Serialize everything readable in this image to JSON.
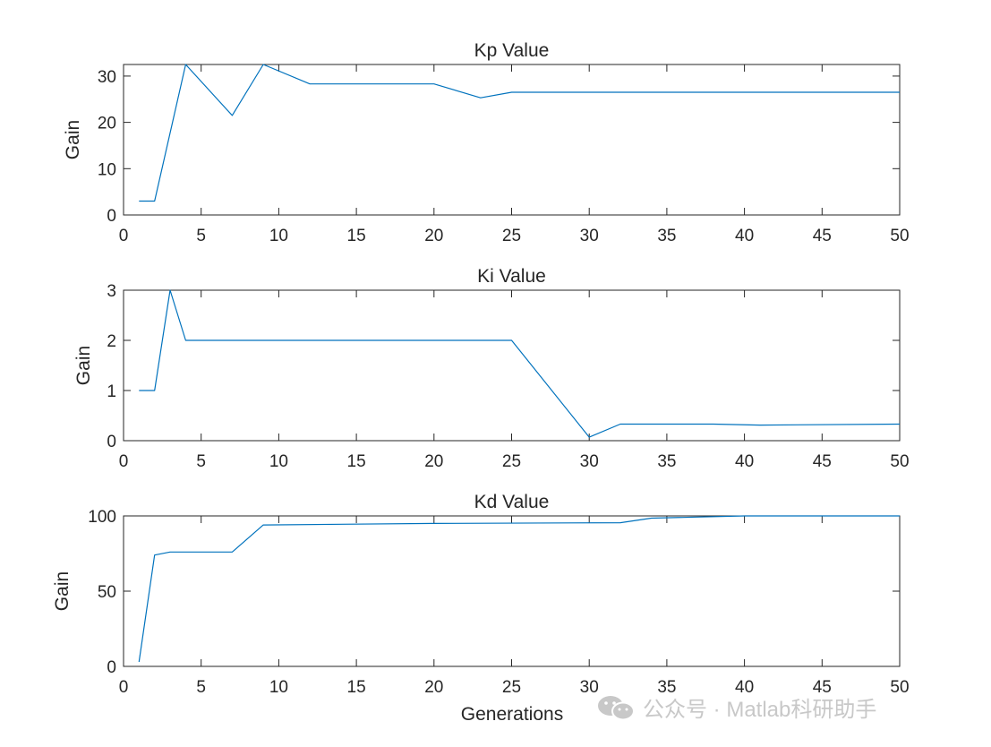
{
  "watermark": "公众号 · Matlab科研助手",
  "colors": {
    "line": "#0072BD",
    "axis": "#262626",
    "background": "#ffffff"
  },
  "chart_data": [
    {
      "type": "line",
      "title": "Kp Value",
      "xlabel": "",
      "ylabel": "Gain",
      "xlim": [
        0,
        50
      ],
      "ylim": [
        0,
        32.5
      ],
      "xticks": [
        0,
        5,
        10,
        15,
        20,
        25,
        30,
        35,
        40,
        45,
        50
      ],
      "yticks": [
        0,
        10,
        20,
        30
      ],
      "grid": false,
      "x": [
        1,
        2,
        4,
        7,
        9,
        12,
        20,
        23,
        25,
        50
      ],
      "y": [
        3,
        3,
        32.5,
        21.5,
        32.5,
        28.3,
        28.3,
        25.3,
        26.5,
        26.5
      ]
    },
    {
      "type": "line",
      "title": "Ki Value",
      "xlabel": "",
      "ylabel": "Gain",
      "xlim": [
        0,
        50
      ],
      "ylim": [
        0,
        3
      ],
      "xticks": [
        0,
        5,
        10,
        15,
        20,
        25,
        30,
        35,
        40,
        45,
        50
      ],
      "yticks": [
        0,
        1,
        2,
        3
      ],
      "grid": false,
      "x": [
        1,
        2,
        3,
        4,
        25,
        30,
        32,
        38,
        41,
        50
      ],
      "y": [
        1,
        1,
        3,
        2,
        2,
        0.07,
        0.33,
        0.33,
        0.31,
        0.33
      ]
    },
    {
      "type": "line",
      "title": "Kd Value",
      "xlabel": "Generations",
      "ylabel": "Gain",
      "xlim": [
        0,
        50
      ],
      "ylim": [
        0,
        100
      ],
      "xticks": [
        0,
        5,
        10,
        15,
        20,
        25,
        30,
        35,
        40,
        45,
        50
      ],
      "yticks": [
        0,
        50,
        100
      ],
      "grid": false,
      "x": [
        1,
        2,
        3,
        4,
        7,
        9,
        20,
        32,
        34,
        40,
        50
      ],
      "y": [
        3,
        74,
        76,
        76,
        76,
        94,
        95,
        95.5,
        98.5,
        100,
        100
      ]
    }
  ]
}
